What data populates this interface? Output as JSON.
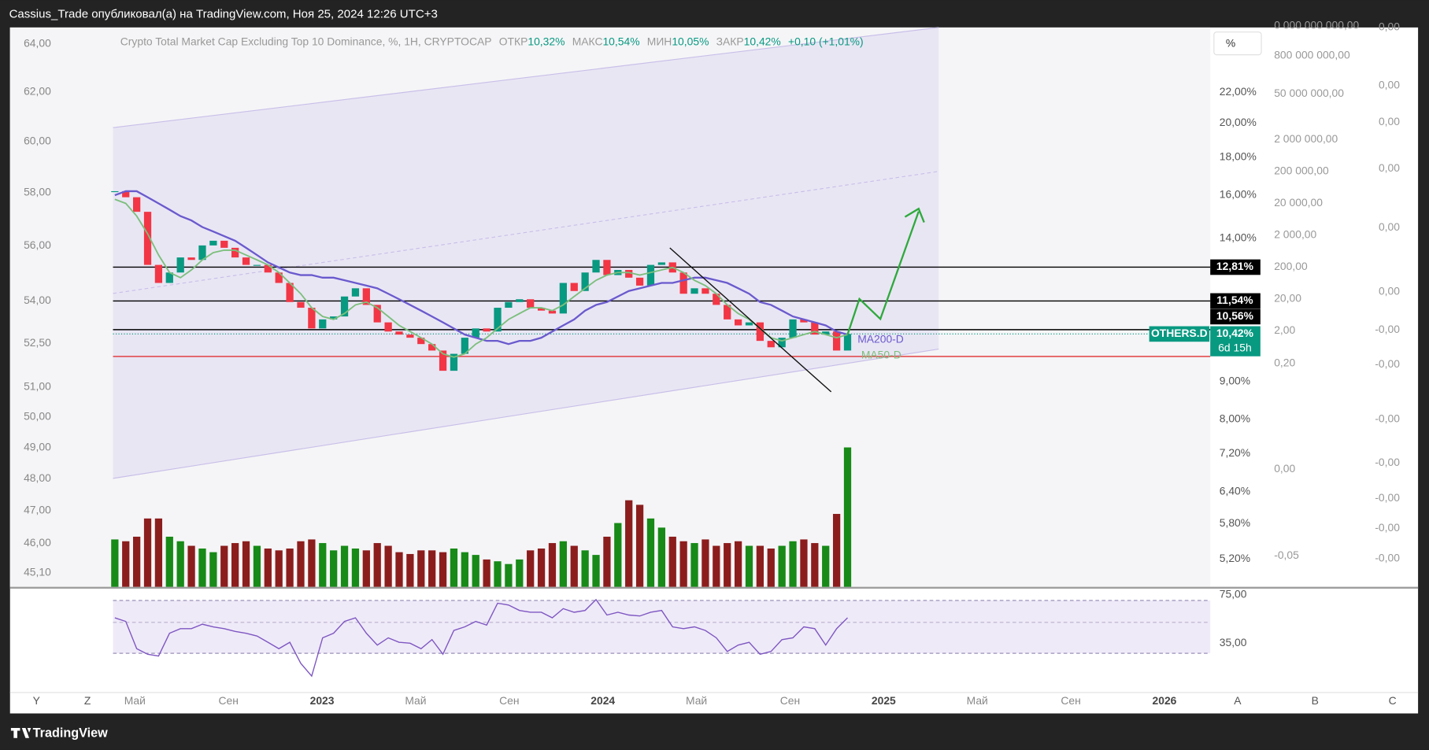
{
  "header": {
    "text": "Cassius_Trade опубликовал(а) на TradingView.com, Ноя 25, 2024 12:26 UTC+3"
  },
  "chart_data": {
    "type": "candlestick",
    "title": "Crypto Total Market Cap Excluding Top 10 Dominance, %, 1H, CRYPTOCAP",
    "ohlc": [
      {
        "name": "ОТКР",
        "value": 10.32,
        "label": "10,32%"
      },
      {
        "name": "МАКС",
        "value": 10.54,
        "label": "10,54%"
      },
      {
        "name": "МИН",
        "value": 10.05,
        "label": "10,05%"
      },
      {
        "name": "ЗАКР",
        "value": 10.42,
        "label": "10,42%"
      }
    ],
    "change": "+0,10 (+1,01%)",
    "log": true,
    "ylim": [
      4.77,
      26.87
    ],
    "yticks": [
      {
        "value": 22,
        "label": "22,00%"
      },
      {
        "value": 20,
        "label": "20,00%"
      },
      {
        "value": 18,
        "label": "18,00%"
      },
      {
        "value": 16,
        "label": "16,00%"
      },
      {
        "value": 14,
        "label": "14,00%"
      },
      {
        "value": 9,
        "label": "9,00%"
      },
      {
        "value": 8,
        "label": "8,00%"
      },
      {
        "value": 7.2,
        "label": "7,20%"
      },
      {
        "value": 6.4,
        "label": "6,40%"
      },
      {
        "value": 5.8,
        "label": "5,80%"
      },
      {
        "value": 5.2,
        "label": "5,20%"
      }
    ],
    "left_axis": {
      "ylim": [
        44.69,
        64.7
      ],
      "yticks": [
        {
          "value": 64,
          "label": "64,00"
        },
        {
          "value": 62,
          "label": "62,00"
        },
        {
          "value": 60,
          "label": "60,00"
        },
        {
          "value": 58,
          "label": "58,00"
        },
        {
          "value": 56,
          "label": "56,00"
        },
        {
          "value": 54,
          "label": "54,00"
        },
        {
          "value": 52.5,
          "label": "52,50"
        },
        {
          "value": 51,
          "label": "51,00"
        },
        {
          "value": 50,
          "label": "50,00"
        },
        {
          "value": 49,
          "label": "49,00"
        },
        {
          "value": 48,
          "label": "48,00"
        },
        {
          "value": 47,
          "label": "47,00"
        },
        {
          "value": 46,
          "label": "46,00"
        },
        {
          "value": 45.1,
          "label": "45,10"
        }
      ]
    },
    "categories": [
      "Май",
      "Сен",
      "2023",
      "Май",
      "Сен",
      "2024",
      "Май",
      "Сен",
      "2025",
      "Май",
      "Сен",
      "2026"
    ],
    "close": [
      16.2,
      15.9,
      15.2,
      12.9,
      12.2,
      12.6,
      13.2,
      13.1,
      13.7,
      13.9,
      13.6,
      13.2,
      12.9,
      12.9,
      12.6,
      12.2,
      11.5,
      11.3,
      10.6,
      10.9,
      11.0,
      11.7,
      12.0,
      11.4,
      10.8,
      10.5,
      10.4,
      10.3,
      10.1,
      9.9,
      9.3,
      9.8,
      10.3,
      10.6,
      10.5,
      11.3,
      11.5,
      11.6,
      11.3,
      11.2,
      11.1,
      12.2,
      11.9,
      12.6,
      13.1,
      12.5,
      12.7,
      12.4,
      12.1,
      12.9,
      13.0,
      12.6,
      11.8,
      12.0,
      11.8,
      11.4,
      10.9,
      10.7,
      10.8,
      10.2,
      10.0,
      10.3,
      10.9,
      10.8,
      10.4,
      10.5,
      9.9,
      10.42
    ],
    "up_color": "#089981",
    "down_color": "#f23645",
    "ma200": {
      "name": "MA200-D",
      "color": "#6a5acd",
      "values": [
        16.0,
        16.2,
        16.2,
        15.9,
        15.6,
        15.3,
        15.0,
        14.8,
        14.5,
        14.3,
        14.1,
        13.9,
        13.6,
        13.3,
        13.0,
        12.8,
        12.6,
        12.5,
        12.5,
        12.4,
        12.4,
        12.3,
        12.2,
        12.1,
        12.0,
        11.8,
        11.6,
        11.4,
        11.2,
        11.0,
        10.8,
        10.6,
        10.4,
        10.3,
        10.2,
        10.2,
        10.1,
        10.2,
        10.2,
        10.3,
        10.5,
        10.7,
        10.9,
        11.2,
        11.4,
        11.5,
        11.7,
        11.9,
        12.0,
        12.1,
        12.2,
        12.2,
        12.3,
        12.4,
        12.4,
        12.3,
        12.2,
        12.0,
        11.8,
        11.5,
        11.4,
        11.2,
        11.0,
        10.9,
        10.8,
        10.7,
        10.5,
        10.4
      ]
    },
    "ma50": {
      "name": "MA50-D",
      "color": "#7cbf7c",
      "values": [
        15.8,
        15.6,
        15.0,
        14.2,
        13.3,
        12.6,
        12.4,
        12.7,
        13.1,
        13.4,
        13.5,
        13.5,
        13.3,
        13.1,
        12.9,
        12.6,
        12.2,
        11.8,
        11.3,
        11.0,
        10.9,
        11.1,
        11.4,
        11.5,
        11.3,
        11.0,
        10.7,
        10.5,
        10.3,
        10.1,
        9.8,
        9.7,
        9.8,
        10.1,
        10.3,
        10.6,
        10.9,
        11.1,
        11.3,
        11.3,
        11.2,
        11.4,
        11.7,
        12.0,
        12.3,
        12.5,
        12.6,
        12.6,
        12.5,
        12.6,
        12.7,
        12.8,
        12.6,
        12.3,
        12.1,
        11.8,
        11.4,
        11.1,
        10.9,
        10.6,
        10.3,
        10.2,
        10.3,
        10.4,
        10.5,
        10.4,
        10.3,
        10.4
      ]
    },
    "volume": {
      "ylim": [
        0,
        160
      ],
      "up_color": "#178a17",
      "down_color": "#8c1d1d",
      "values": [
        52,
        50,
        55,
        75,
        75,
        55,
        50,
        45,
        42,
        38,
        45,
        48,
        50,
        45,
        42,
        40,
        42,
        50,
        52,
        48,
        40,
        45,
        42,
        40,
        48,
        45,
        38,
        36,
        40,
        40,
        38,
        42,
        38,
        35,
        30,
        28,
        25,
        30,
        40,
        42,
        48,
        50,
        45,
        40,
        35,
        55,
        70,
        95,
        90,
        75,
        65,
        55,
        50,
        48,
        52,
        45,
        48,
        50,
        45,
        45,
        42,
        45,
        50,
        52,
        48,
        45,
        80,
        153
      ]
    },
    "price_lines": [
      {
        "value": 12.81,
        "label": "12,81%",
        "color": "#000000"
      },
      {
        "value": 11.54,
        "label": "11,54%",
        "color": "#000000"
      },
      {
        "value": 10.56,
        "label": "10,56%",
        "color": "#000000"
      }
    ],
    "support_line": {
      "value": 9.72,
      "color": "#e03030"
    },
    "last": {
      "symbol": "OTHERS.D",
      "value": 10.42,
      "label": "10,42%",
      "countdown": "6d 15h",
      "color": "#089981"
    },
    "rsi": {
      "color": "#7e57c2",
      "ylim": [
        -5.8,
        80.3
      ],
      "yticks": [
        {
          "value": 75,
          "label": "75,00"
        },
        {
          "value": 35,
          "label": "35,00"
        }
      ],
      "values": [
        56.1,
        53.1,
        30.5,
        25.9,
        24.4,
        43.3,
        47.1,
        47.1,
        50.8,
        48.6,
        47.1,
        44.8,
        43.3,
        41.0,
        35.8,
        30.5,
        35.8,
        18.4,
        7.8,
        39.5,
        43.3,
        53.1,
        56.1,
        43.3,
        33.5,
        39.5,
        35.8,
        35.0,
        30.5,
        38.0,
        25.9,
        45.6,
        48.6,
        53.1,
        50.1,
        68.2,
        66.7,
        62.2,
        60.7,
        60.7,
        56.1,
        63.7,
        60.7,
        62.2,
        71.2,
        58.4,
        60.7,
        58.4,
        57.6,
        60.7,
        62.2,
        48.6,
        47.1,
        48.6,
        45.6,
        39.5,
        28.2,
        33.5,
        35.8,
        25.9,
        28.2,
        38.0,
        39.5,
        48.6,
        47.1,
        33.5,
        47.1,
        56.1
      ]
    }
  },
  "overlay_scales": {
    "left": [
      "0 000 000 000,00",
      "800 000 000,00",
      "50 000 000,00",
      "2 000 000,00",
      "200 000,00",
      "20 000,00",
      "2 000,00",
      "200,00",
      "20,00",
      "2,00",
      "0,20",
      "0,00",
      "-0,05"
    ],
    "right": [
      "0,00",
      "0,00",
      "0,00",
      "0,00",
      "0,00",
      "0,00",
      "-0,00",
      "-0,00",
      "-0,00",
      "-0,00",
      "-0,00",
      "-0,00",
      "-0,00"
    ]
  },
  "toolbar": {
    "percent": "%",
    "left_buttons": [
      "Y",
      "Z"
    ],
    "right_buttons": [
      "A",
      "B",
      "C"
    ]
  },
  "footer": {
    "logo": "TradingView"
  }
}
